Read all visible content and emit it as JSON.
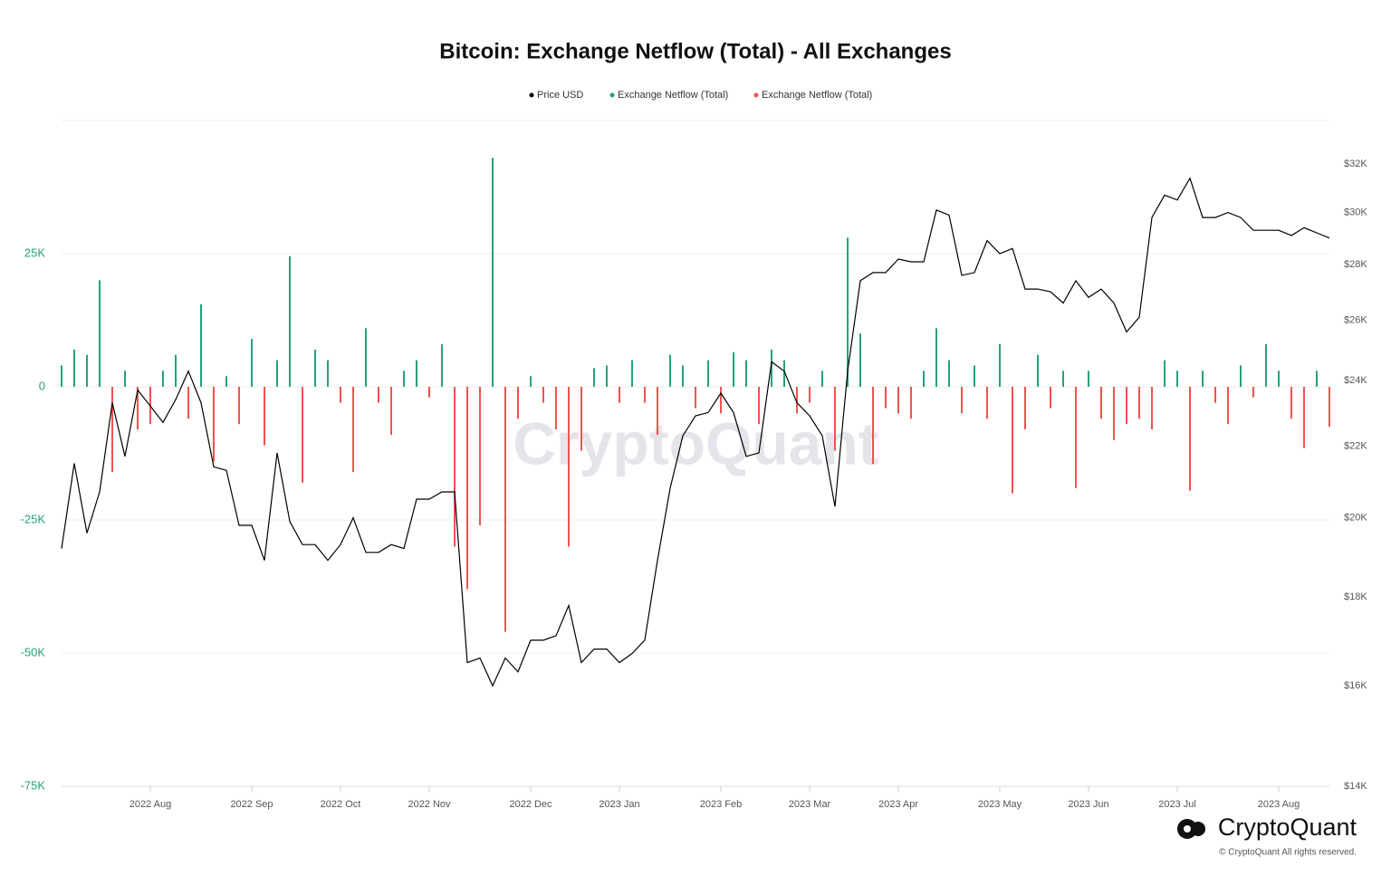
{
  "chart_data": {
    "type": "combo",
    "title": "Bitcoin: Exchange Netflow (Total) - All Exchanges",
    "watermark": "CryptoQuant",
    "logo": "CryptoQuant",
    "copyright": "© CryptoQuant All rights reserved.",
    "categories": [
      null,
      null,
      null,
      null,
      null,
      null,
      null,
      "2022 Aug",
      null,
      null,
      null,
      null,
      null,
      null,
      null,
      "2022 Sep",
      null,
      null,
      null,
      null,
      null,
      null,
      "2022 Oct",
      null,
      null,
      null,
      null,
      null,
      null,
      "2022 Nov",
      null,
      null,
      null,
      null,
      null,
      null,
      null,
      "2022 Dec",
      null,
      null,
      null,
      null,
      null,
      null,
      "2023 Jan",
      null,
      null,
      null,
      null,
      null,
      null,
      null,
      "2023 Feb",
      null,
      null,
      null,
      null,
      null,
      null,
      "2023 Mar",
      null,
      null,
      null,
      null,
      null,
      null,
      "2023 Apr",
      null,
      null,
      null,
      null,
      null,
      null,
      null,
      "2023 May",
      null,
      null,
      null,
      null,
      null,
      null,
      "2023 Jun",
      null,
      null,
      null,
      null,
      null,
      null,
      "2023 Jul",
      null,
      null,
      null,
      null,
      null,
      null,
      null,
      "2023 Aug",
      null,
      null,
      null,
      null
    ],
    "series": [
      {
        "name": "Price USD",
        "type": "line",
        "axis": "y2",
        "color": "#000000",
        "values": [
          19200,
          21500,
          19600,
          20700,
          23300,
          21700,
          23700,
          23200,
          22700,
          23400,
          24300,
          23300,
          21400,
          21300,
          19800,
          19800,
          18900,
          21800,
          19900,
          19300,
          19300,
          18900,
          19300,
          20000,
          19100,
          19100,
          19300,
          19200,
          20500,
          20500,
          20700,
          20700,
          16500,
          16600,
          16000,
          16600,
          16300,
          17000,
          17000,
          17100,
          17800,
          16500,
          16800,
          16800,
          16500,
          16700,
          17000,
          18900,
          20800,
          22300,
          22900,
          23000,
          23600,
          23000,
          21700,
          21800,
          24600,
          24300,
          23300,
          22900,
          22300,
          20300,
          24300,
          27400,
          27700,
          27700,
          28200,
          28100,
          28100,
          30100,
          29900,
          27600,
          27700,
          28900,
          28400,
          28600,
          27100,
          27100,
          27000,
          26600,
          27400,
          26800,
          27100,
          26600,
          25600,
          26100,
          29800,
          30700,
          30500,
          31400,
          29800,
          29800,
          30000,
          29800,
          29300,
          29300,
          29300,
          29100,
          29400,
          29200,
          29000
        ]
      },
      {
        "name": "Exchange Netflow (Total)",
        "type": "bar",
        "color": "#26a17b",
        "values": [
          4000,
          7000,
          6000,
          20000,
          null,
          3000,
          null,
          null,
          3000,
          6000,
          null,
          15500,
          null,
          2000,
          null,
          9000,
          null,
          5000,
          24500,
          null,
          7000,
          5000,
          null,
          null,
          11000,
          null,
          null,
          3000,
          5000,
          null,
          8000,
          null,
          null,
          null,
          43000,
          null,
          null,
          2000,
          null,
          null,
          null,
          null,
          3500,
          4000,
          null,
          5000,
          null,
          null,
          6000,
          4000,
          null,
          5000,
          null,
          6500,
          5000,
          null,
          7000,
          5000,
          null,
          null,
          3000,
          null,
          28000,
          10000,
          null,
          null,
          null,
          null,
          3000,
          11000,
          5000,
          null,
          4000,
          null,
          8000,
          null,
          null,
          6000,
          null,
          3000,
          null,
          3000,
          null,
          null,
          null,
          null,
          null,
          5000,
          3000,
          null,
          3000,
          null,
          null,
          4000,
          null,
          8000,
          3000,
          null,
          null,
          3000,
          null
        ]
      },
      {
        "name": "Exchange Netflow (Total)",
        "type": "bar",
        "color": "#ef5350",
        "values": [
          null,
          null,
          null,
          null,
          -16000,
          null,
          -8000,
          -7000,
          null,
          null,
          -6000,
          null,
          -14000,
          null,
          -7000,
          null,
          -11000,
          null,
          null,
          -18000,
          null,
          null,
          -3000,
          -16000,
          null,
          -3000,
          -9000,
          null,
          null,
          -2000,
          null,
          -30000,
          -38000,
          -26000,
          null,
          -46000,
          -6000,
          null,
          -3000,
          -8000,
          -30000,
          -12000,
          null,
          null,
          -3000,
          null,
          -3000,
          -9000,
          null,
          null,
          -4000,
          null,
          -5000,
          null,
          null,
          -7000,
          null,
          null,
          -5000,
          -3000,
          null,
          -12000,
          null,
          null,
          -14500,
          -4000,
          -5000,
          -6000,
          null,
          null,
          null,
          -5000,
          null,
          -6000,
          null,
          -20000,
          -8000,
          null,
          -4000,
          null,
          -19000,
          null,
          -6000,
          -10000,
          -7000,
          -6000,
          -8000,
          null,
          null,
          -19500,
          null,
          -3000,
          -7000,
          null,
          -2000,
          null,
          null,
          -6000,
          -11500,
          null,
          -7500
        ]
      }
    ],
    "ylim": [
      -75000,
      50000
    ],
    "yticks": [
      {
        "value": -75000,
        "label": "-75K"
      },
      {
        "value": -50000,
        "label": "-50K"
      },
      {
        "value": -25000,
        "label": "-25K"
      },
      0,
      {
        "value": 25000,
        "label": "25K"
      }
    ],
    "y2lim": [
      14000,
      33900
    ],
    "y2log": true,
    "y2ticks": [
      {
        "value": 14000,
        "label": "$14K"
      },
      {
        "value": 16000,
        "label": "$16K"
      },
      {
        "value": 18000,
        "label": "$18K"
      },
      {
        "value": 20000,
        "label": "$20K"
      },
      {
        "value": 22000,
        "label": "$22K"
      },
      {
        "value": 24000,
        "label": "$24K"
      },
      {
        "value": 26000,
        "label": "$26K"
      },
      {
        "value": 28000,
        "label": "$28K"
      },
      {
        "value": 30000,
        "label": "$30K"
      },
      {
        "value": 32000,
        "label": "$32K"
      }
    ],
    "grid": true,
    "legend": "top"
  }
}
